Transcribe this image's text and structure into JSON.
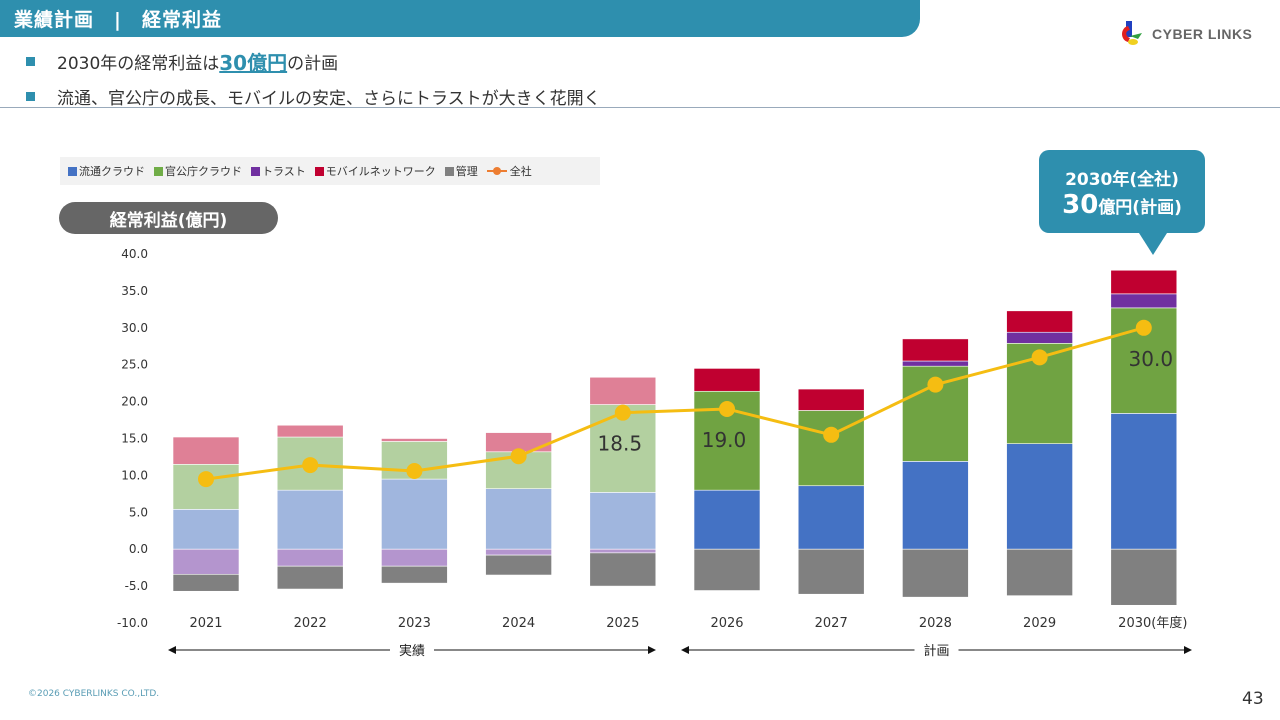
{
  "header": {
    "title": "業績計画　|　経常利益"
  },
  "logo": {
    "text": "CYBER LINKS"
  },
  "bullets": [
    {
      "before": "2030年の経常利益は",
      "accent": "30億円",
      "after": "の計画"
    },
    {
      "before": "流通、官公庁の成長、モバイルの安定、さらにトラストが大きく花開く",
      "accent": "",
      "after": ""
    }
  ],
  "legend": {
    "items": [
      {
        "label": "流通クラウド",
        "color": "#4472c4"
      },
      {
        "label": "官公庁クラウド",
        "color": "#70ad47"
      },
      {
        "label": "トラスト",
        "color": "#7030a0"
      },
      {
        "label": "モバイルネットワーク",
        "color": "#c00000"
      },
      {
        "label": "管理",
        "color": "#808080"
      }
    ],
    "line_label": "全社"
  },
  "pill": {
    "label": "経常利益(億円)"
  },
  "callout": {
    "line1": "2030年(全社)",
    "line2_big": "30",
    "line2_rest": "億円(計画)"
  },
  "periods": {
    "actual": "実績",
    "plan": "計画"
  },
  "footer": {
    "copyright": "©2026 CYBERLINKS CO.,LTD.",
    "page": "43"
  },
  "chart_data": {
    "type": "bar",
    "stacked": true,
    "title": "経常利益(億円)",
    "xlabel": "",
    "ylabel": "経常利益(億円)",
    "ylim": [
      -10,
      40
    ],
    "yticks": [
      "40.0",
      "35.0",
      "30.0",
      "25.0",
      "20.0",
      "15.0",
      "10.0",
      "5.0",
      "0.0",
      "-5.0",
      "-10.0"
    ],
    "categories": [
      "2021",
      "2022",
      "2023",
      "2024",
      "2025",
      "2026",
      "2027",
      "2028",
      "2029",
      "2030(年度)"
    ],
    "actual_count": 5,
    "series": [
      {
        "name": "流通クラウド",
        "color": "#4472c4",
        "faded_color": "#a0b6de",
        "values": [
          5.4,
          8.0,
          9.5,
          8.2,
          7.7,
          8.0,
          8.6,
          11.9,
          14.3,
          18.4
        ]
      },
      {
        "name": "官公庁クラウド",
        "color": "#70a342",
        "faded_color": "#b3d0a0",
        "values": [
          6.1,
          7.2,
          5.1,
          5.0,
          11.9,
          13.4,
          10.2,
          12.9,
          13.6,
          14.3
        ]
      },
      {
        "name": "トラスト",
        "color": "#7030a0",
        "faded_color": "#b495ce",
        "values": [
          -3.4,
          -2.3,
          -2.3,
          -0.8,
          -0.5,
          0,
          0,
          0.7,
          1.5,
          1.9
        ]
      },
      {
        "name": "モバイルネットワーク",
        "color": "#c00030",
        "faded_color": "#df8096",
        "values": [
          3.7,
          1.6,
          0.4,
          2.6,
          3.7,
          3.1,
          2.9,
          3.0,
          2.9,
          3.2
        ]
      },
      {
        "name": "管理",
        "color": "#808080",
        "faded_color": "#808080",
        "values": [
          -2.3,
          -3.1,
          -2.3,
          -2.7,
          -4.5,
          -5.6,
          -6.1,
          -6.5,
          -6.3,
          -7.6
        ]
      }
    ],
    "line": {
      "name": "全社",
      "color": "#f5bd12",
      "values": [
        9.5,
        11.4,
        10.6,
        12.6,
        18.5,
        19.0,
        15.5,
        22.3,
        26.0,
        30.0
      ]
    },
    "data_labels": [
      {
        "index": 4,
        "text": "18.5"
      },
      {
        "index": 5,
        "text": "19.0"
      },
      {
        "index": 9,
        "text": "30.0"
      }
    ],
    "legend_position": "top-left",
    "grid": false
  }
}
